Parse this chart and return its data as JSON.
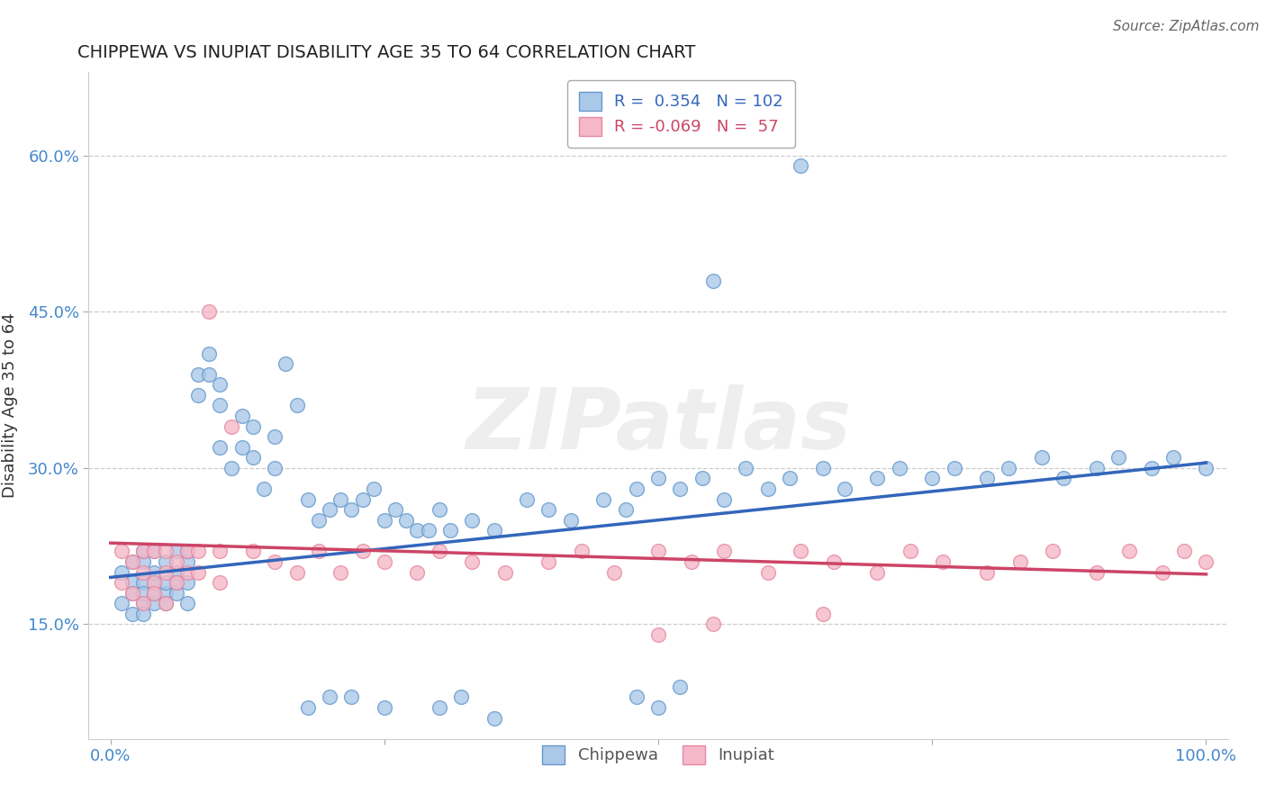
{
  "title": "CHIPPEWA VS INUPIAT DISABILITY AGE 35 TO 64 CORRELATION CHART",
  "source": "Source: ZipAtlas.com",
  "ylabel_label": "Disability Age 35 to 64",
  "xlim": [
    -0.02,
    1.02
  ],
  "ylim": [
    0.04,
    0.68
  ],
  "xtick_positions": [
    0.0,
    0.25,
    0.5,
    0.75,
    1.0
  ],
  "xtick_labels": [
    "0.0%",
    "",
    "",
    "",
    "100.0%"
  ],
  "ytick_positions": [
    0.15,
    0.3,
    0.45,
    0.6
  ],
  "ytick_labels": [
    "15.0%",
    "30.0%",
    "45.0%",
    "60.0%"
  ],
  "grid_color": "#cccccc",
  "background_color": "#ffffff",
  "chippewa_face_color": "#aac8e8",
  "inupiat_face_color": "#f4b8c8",
  "chippewa_edge_color": "#6699cc",
  "inupiat_edge_color": "#e888a0",
  "chippewa_line_color": "#3366bb",
  "inupiat_line_color": "#cc4466",
  "R_chippewa": 0.354,
  "N_chippewa": 102,
  "R_inupiat": -0.069,
  "N_inupiat": 57,
  "watermark": "ZIPatlas",
  "legend_entries": [
    "Chippewa",
    "Inupiat"
  ],
  "chippewa_x": [
    0.01,
    0.01,
    0.02,
    0.02,
    0.02,
    0.02,
    0.03,
    0.03,
    0.03,
    0.03,
    0.03,
    0.03,
    0.04,
    0.04,
    0.04,
    0.04,
    0.04,
    0.05,
    0.05,
    0.05,
    0.05,
    0.06,
    0.06,
    0.06,
    0.06,
    0.07,
    0.07,
    0.07,
    0.07,
    0.08,
    0.08,
    0.09,
    0.09,
    0.1,
    0.1,
    0.1,
    0.11,
    0.12,
    0.12,
    0.13,
    0.13,
    0.14,
    0.15,
    0.15,
    0.16,
    0.17,
    0.18,
    0.19,
    0.2,
    0.21,
    0.22,
    0.23,
    0.24,
    0.25,
    0.26,
    0.27,
    0.28,
    0.29,
    0.3,
    0.31,
    0.33,
    0.35,
    0.38,
    0.4,
    0.42,
    0.45,
    0.47,
    0.48,
    0.5,
    0.52,
    0.54,
    0.56,
    0.58,
    0.6,
    0.62,
    0.65,
    0.67,
    0.7,
    0.72,
    0.75,
    0.77,
    0.8,
    0.82,
    0.85,
    0.87,
    0.9,
    0.92,
    0.95,
    0.97,
    1.0,
    0.55,
    0.63,
    0.48,
    0.5,
    0.52,
    0.3,
    0.32,
    0.35,
    0.18,
    0.2,
    0.22,
    0.25
  ],
  "chippewa_y": [
    0.2,
    0.17,
    0.19,
    0.18,
    0.16,
    0.21,
    0.17,
    0.19,
    0.21,
    0.18,
    0.16,
    0.22,
    0.19,
    0.17,
    0.22,
    0.18,
    0.2,
    0.18,
    0.21,
    0.19,
    0.17,
    0.2,
    0.22,
    0.18,
    0.19,
    0.17,
    0.21,
    0.19,
    0.22,
    0.39,
    0.37,
    0.41,
    0.39,
    0.38,
    0.36,
    0.32,
    0.3,
    0.32,
    0.35,
    0.31,
    0.34,
    0.28,
    0.33,
    0.3,
    0.4,
    0.36,
    0.27,
    0.25,
    0.26,
    0.27,
    0.26,
    0.27,
    0.28,
    0.25,
    0.26,
    0.25,
    0.24,
    0.24,
    0.26,
    0.24,
    0.25,
    0.24,
    0.27,
    0.26,
    0.25,
    0.27,
    0.26,
    0.28,
    0.29,
    0.28,
    0.29,
    0.27,
    0.3,
    0.28,
    0.29,
    0.3,
    0.28,
    0.29,
    0.3,
    0.29,
    0.3,
    0.29,
    0.3,
    0.31,
    0.29,
    0.3,
    0.31,
    0.3,
    0.31,
    0.3,
    0.48,
    0.59,
    0.08,
    0.07,
    0.09,
    0.07,
    0.08,
    0.06,
    0.07,
    0.08,
    0.08,
    0.07
  ],
  "inupiat_x": [
    0.01,
    0.01,
    0.02,
    0.02,
    0.03,
    0.03,
    0.03,
    0.04,
    0.04,
    0.04,
    0.05,
    0.05,
    0.05,
    0.06,
    0.06,
    0.07,
    0.07,
    0.08,
    0.08,
    0.09,
    0.1,
    0.1,
    0.11,
    0.13,
    0.15,
    0.17,
    0.19,
    0.21,
    0.23,
    0.25,
    0.28,
    0.3,
    0.33,
    0.36,
    0.4,
    0.43,
    0.46,
    0.5,
    0.53,
    0.56,
    0.6,
    0.63,
    0.66,
    0.7,
    0.73,
    0.76,
    0.8,
    0.83,
    0.86,
    0.9,
    0.93,
    0.96,
    1.0,
    0.5,
    0.55,
    0.65,
    0.98
  ],
  "inupiat_y": [
    0.22,
    0.19,
    0.21,
    0.18,
    0.17,
    0.2,
    0.22,
    0.19,
    0.22,
    0.18,
    0.2,
    0.22,
    0.17,
    0.21,
    0.19,
    0.22,
    0.2,
    0.22,
    0.2,
    0.45,
    0.19,
    0.22,
    0.34,
    0.22,
    0.21,
    0.2,
    0.22,
    0.2,
    0.22,
    0.21,
    0.2,
    0.22,
    0.21,
    0.2,
    0.21,
    0.22,
    0.2,
    0.22,
    0.21,
    0.22,
    0.2,
    0.22,
    0.21,
    0.2,
    0.22,
    0.21,
    0.2,
    0.21,
    0.22,
    0.2,
    0.22,
    0.2,
    0.21,
    0.14,
    0.15,
    0.16,
    0.22
  ]
}
